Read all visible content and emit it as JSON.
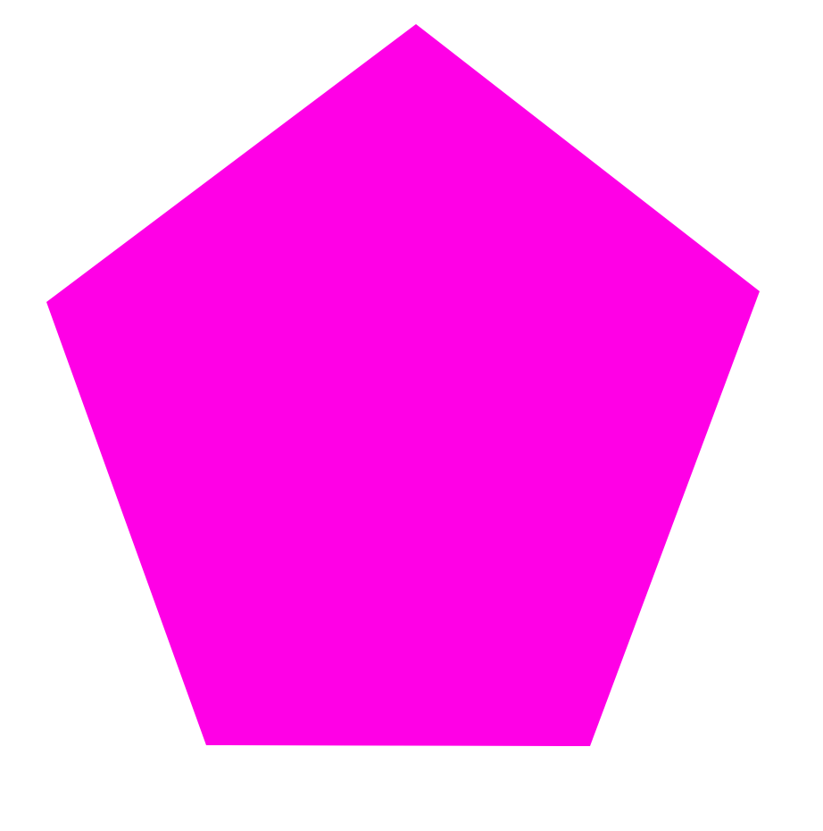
{
  "background_color": "#ffffff",
  "shape": {
    "kind": "pentagon",
    "fill_color": "#ff00e6"
  }
}
